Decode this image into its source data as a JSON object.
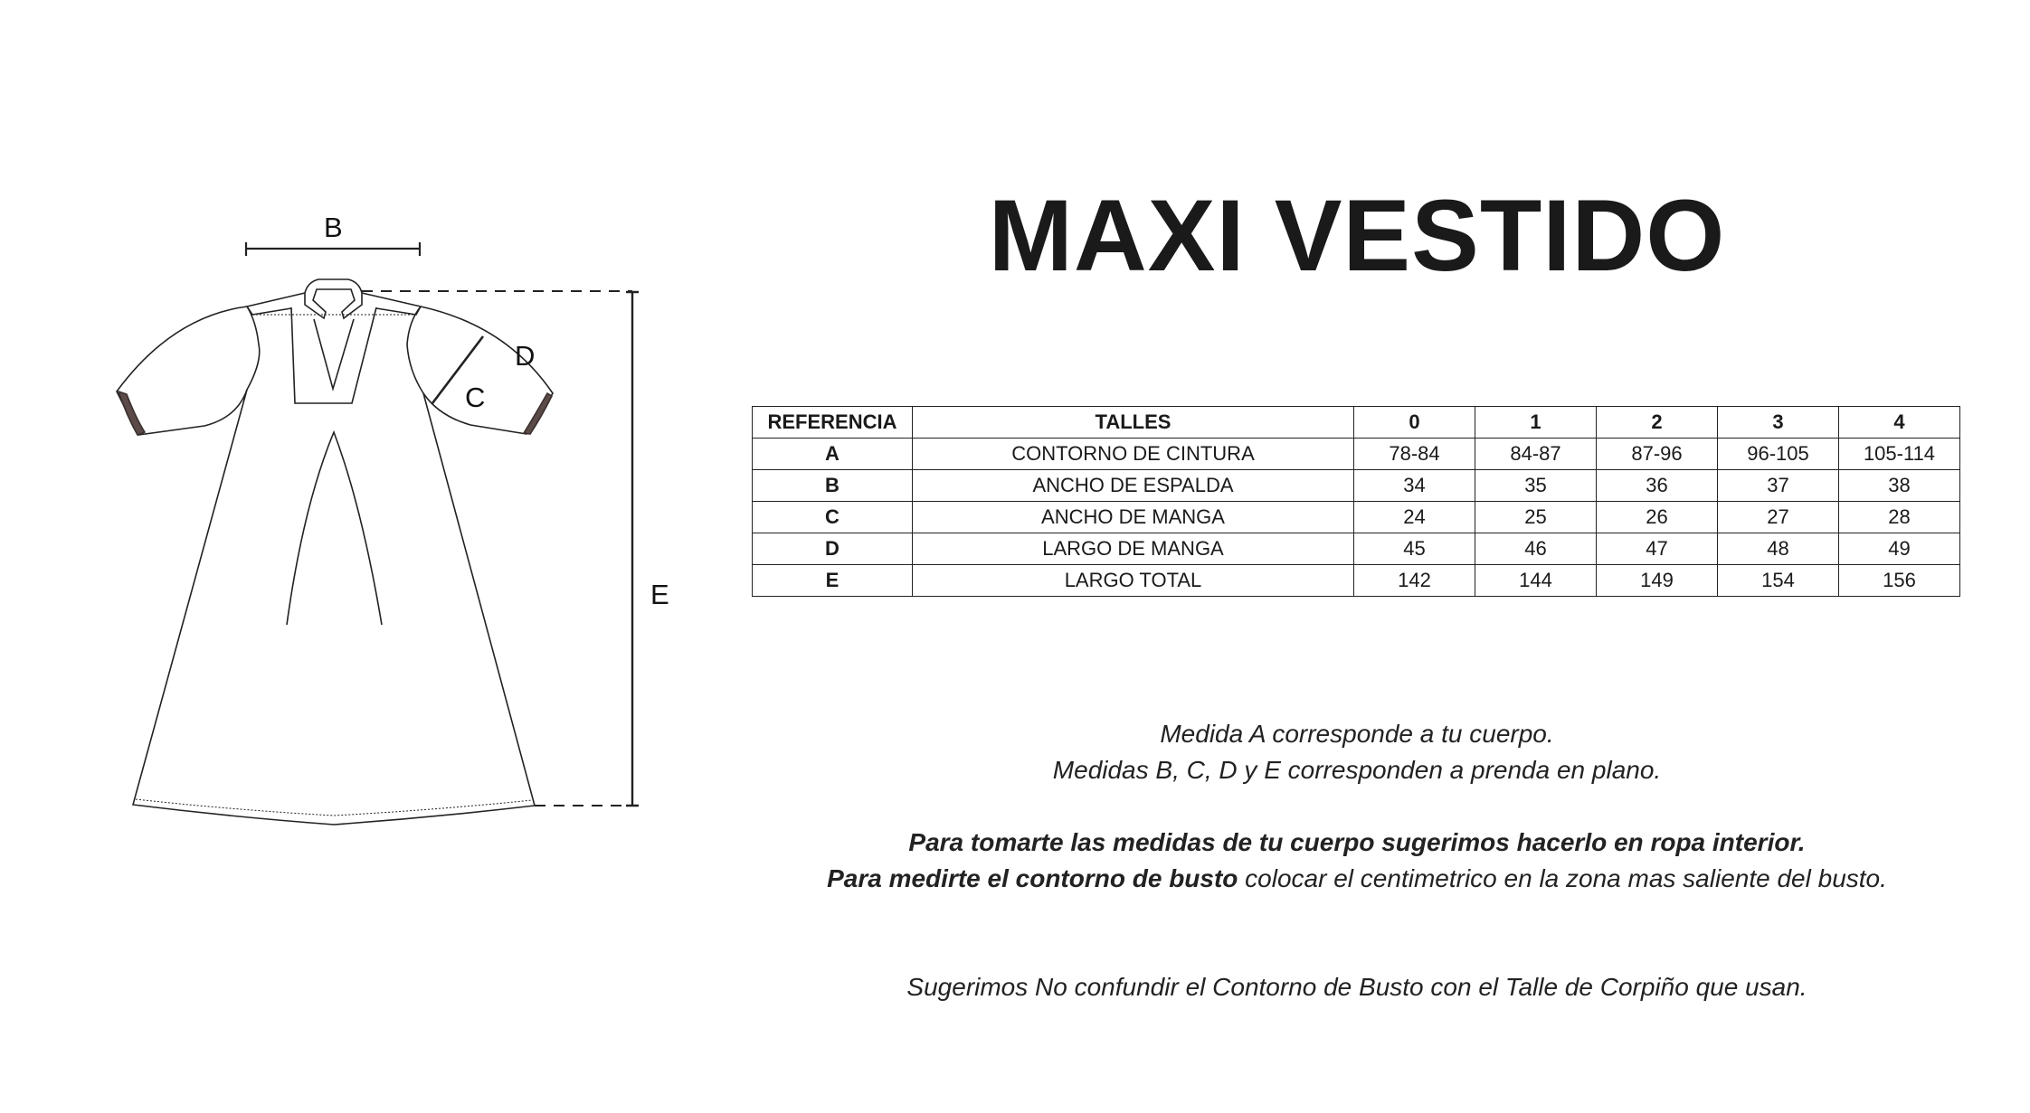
{
  "diagram": {
    "labels": {
      "B": "B",
      "C": "C",
      "D": "D",
      "E": "E"
    }
  },
  "title": "MAXI VESTIDO",
  "table": {
    "headers": [
      "REFERENCIA",
      "TALLES",
      "0",
      "1",
      "2",
      "3",
      "4"
    ],
    "rows": [
      {
        "ref": "A",
        "name": "CONTORNO DE CINTURA",
        "values": [
          "78-84",
          "84-87",
          "87-96",
          "96-105",
          "105-114"
        ]
      },
      {
        "ref": "B",
        "name": "ANCHO DE ESPALDA",
        "values": [
          "34",
          "35",
          "36",
          "37",
          "38"
        ]
      },
      {
        "ref": "C",
        "name": "ANCHO DE MANGA",
        "values": [
          "24",
          "25",
          "26",
          "27",
          "28"
        ]
      },
      {
        "ref": "D",
        "name": "LARGO DE MANGA",
        "values": [
          "45",
          "46",
          "47",
          "48",
          "49"
        ]
      },
      {
        "ref": "E",
        "name": "LARGO TOTAL",
        "values": [
          "142",
          "144",
          "149",
          "154",
          "156"
        ]
      }
    ]
  },
  "notes": {
    "line1": "Medida A corresponde a tu cuerpo.",
    "line2": "Medidas B, C, D y E corresponden a prenda en plano.",
    "line3": "Para tomarte las medidas de tu cuerpo sugerimos hacerlo en ropa interior.",
    "line4_bold": "Para medirte el contorno de busto",
    "line4_rest": " colocar el centimetrico en la zona mas saliente del busto.",
    "line5": "Sugerimos No confundir el Contorno de Busto con el Talle de Corpiño que usan."
  }
}
